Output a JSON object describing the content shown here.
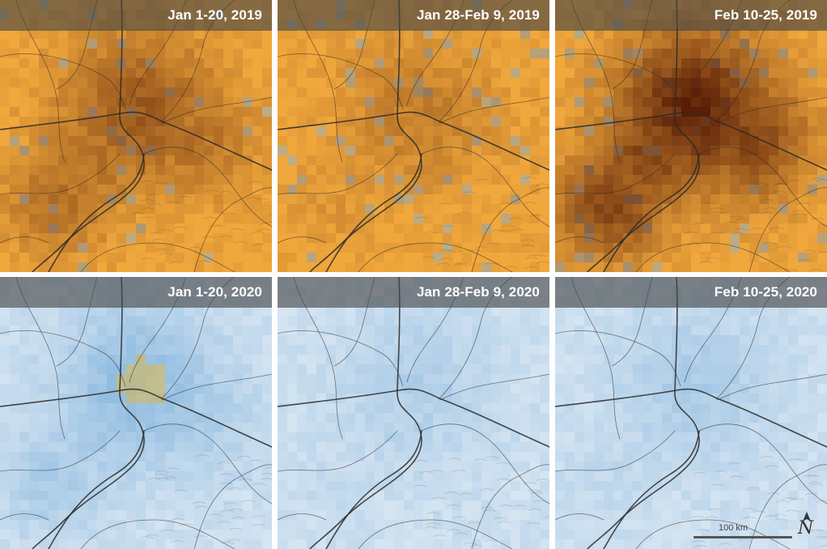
{
  "panels": [
    {
      "label": "Jan 1-20, 2019",
      "scheme": "orange",
      "intensity": 0.55,
      "spread": 0.95
    },
    {
      "label": "Jan 28-Feb 9, 2019",
      "scheme": "orange",
      "intensity": 0.3,
      "spread": 0.55
    },
    {
      "label": "Feb 10-25, 2019",
      "scheme": "orange",
      "intensity": 0.95,
      "spread": 1.0
    },
    {
      "label": "Jan 1-20, 2020",
      "scheme": "blue",
      "intensity": 0.55,
      "spread": 0.8
    },
    {
      "label": "Jan 28-Feb 9, 2020",
      "scheme": "blue",
      "intensity": 0.25,
      "spread": 0.4
    },
    {
      "label": "Feb 10-25, 2020",
      "scheme": "blue",
      "intensity": 0.3,
      "spread": 0.5
    }
  ],
  "scale_bar": {
    "label": "100 km"
  },
  "north_arrow": {
    "letter": "N",
    "icon": "north-arrow-icon"
  },
  "colors": {
    "orange_base": "#f0a73c",
    "orange_dark": "#5a1e06",
    "blue_base": "#dbe8f3",
    "blue_mid": "#7fb2dc",
    "hotspot_yellow": "#e0b94a",
    "roads": "#2a2a2a"
  }
}
